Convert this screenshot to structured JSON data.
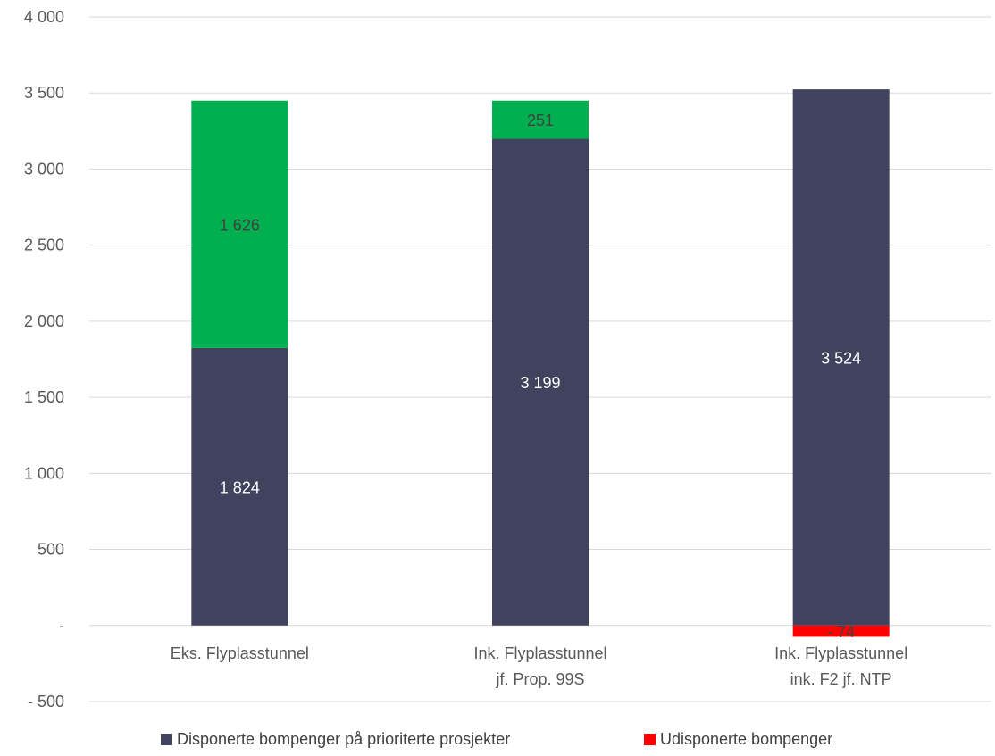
{
  "chart_data": {
    "type": "bar",
    "stacked": true,
    "categories": [
      [
        "Eks. Flyplasstunnel"
      ],
      [
        "Ink. Flyplasstunnel",
        "jf. Prop. 99S"
      ],
      [
        "Ink. Flyplasstunnel",
        "ink. F2 jf. NTP"
      ]
    ],
    "series": [
      {
        "name": "Disponerte bompenger på prioriterte prosjekter",
        "color": "#40435e",
        "label_color": "#ffffff",
        "values": [
          1824,
          3199,
          3524
        ],
        "labels": [
          "1 824",
          "3 199",
          "3 524"
        ]
      },
      {
        "name": "Udisponerte bompenger",
        "color": "#00b050",
        "label_color": "#404040",
        "values": [
          1626,
          251,
          -74
        ],
        "point_colors": [
          "#00b050",
          "#00b050",
          "#ff0000"
        ],
        "labels": [
          "1 626",
          "251",
          "- 74"
        ]
      }
    ],
    "legend_entries": [
      {
        "name": "Disponerte bompenger på prioriterte prosjekter",
        "color": "#40435e"
      },
      {
        "name": "Udisponerte bompenger",
        "color": "#ff0000"
      }
    ],
    "ylim": [
      -500,
      4000
    ],
    "yticks": [
      -500,
      0,
      500,
      1000,
      1500,
      2000,
      2500,
      3000,
      3500,
      4000
    ],
    "ytick_labels": [
      "- 500",
      "-",
      "500",
      "1 000",
      "1 500",
      "2 000",
      "2 500",
      "3 000",
      "3 500",
      "4 000"
    ],
    "grid": true,
    "legend_position": "bottom",
    "title": "",
    "xlabel": "",
    "ylabel": ""
  }
}
